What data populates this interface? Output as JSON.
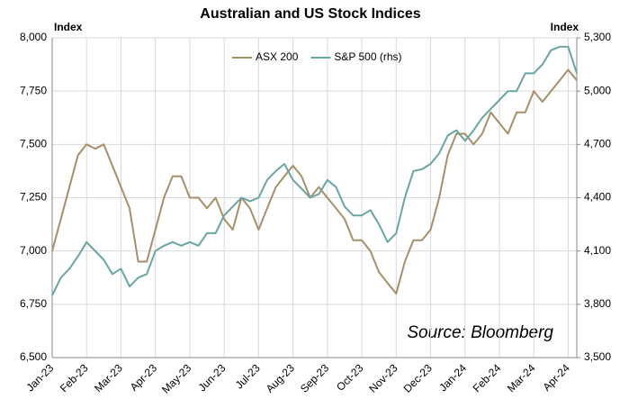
{
  "chart_data": {
    "type": "line",
    "title": "Australian and US Stock Indices",
    "y_label": "Index",
    "y2_label": "Index",
    "annotation": "Source: Bloomberg",
    "categories": [
      "Jan-23",
      null,
      null,
      null,
      "Feb-23",
      null,
      null,
      null,
      "Mar-23",
      null,
      null,
      null,
      "Apr-23",
      null,
      null,
      null,
      "May-23",
      null,
      null,
      null,
      "Jun-23",
      null,
      null,
      null,
      "Jul-23",
      null,
      null,
      null,
      "Aug-23",
      null,
      null,
      null,
      "Sep-23",
      null,
      null,
      null,
      "Oct-23",
      null,
      null,
      null,
      "Nov-23",
      null,
      null,
      null,
      "Dec-23",
      null,
      null,
      null,
      "Jan-24",
      null,
      null,
      null,
      "Feb-24",
      null,
      null,
      null,
      "Mar-24",
      null,
      null,
      null,
      "Apr-24",
      null
    ],
    "series": [
      {
        "name": "ASX 200",
        "color": "#a68f69",
        "values": [
          7000,
          7150,
          7300,
          7450,
          7500,
          7480,
          7500,
          7400,
          7300,
          7200,
          6950,
          6950,
          7100,
          7250,
          7350,
          7350,
          7250,
          7250,
          7200,
          7250,
          7150,
          7100,
          7250,
          7200,
          7100,
          7200,
          7300,
          7350,
          7400,
          7350,
          7250,
          7300,
          7250,
          7200,
          7150,
          7050,
          7050,
          7000,
          6900,
          6850,
          6800,
          6950,
          7050,
          7050,
          7100,
          7250,
          7450,
          7550,
          7550,
          7500,
          7550,
          7650,
          7600,
          7550,
          7650,
          7650,
          7750,
          7700,
          7750,
          7800,
          7850,
          7800
        ]
      },
      {
        "name": "S&P 500 (rhs)",
        "color": "#6aa4a3",
        "axis": "y2",
        "values": [
          3850,
          3950,
          4000,
          4070,
          4150,
          4100,
          4050,
          3970,
          4000,
          3900,
          3950,
          3970,
          4100,
          4130,
          4150,
          4130,
          4150,
          4130,
          4200,
          4200,
          4300,
          4350,
          4400,
          4380,
          4400,
          4500,
          4550,
          4590,
          4500,
          4450,
          4400,
          4420,
          4500,
          4460,
          4350,
          4300,
          4300,
          4330,
          4250,
          4150,
          4200,
          4400,
          4550,
          4560,
          4590,
          4650,
          4750,
          4780,
          4720,
          4780,
          4850,
          4900,
          4950,
          5000,
          5000,
          5100,
          5100,
          5150,
          5230,
          5250,
          5250,
          5100
        ]
      }
    ],
    "ylim": [
      6500,
      8000
    ],
    "yticks": [
      {
        "value": 6500,
        "label": "6,500"
      },
      {
        "value": 6750,
        "label": "6,750"
      },
      {
        "value": 7000,
        "label": "7,000"
      },
      {
        "value": 7250,
        "label": "7,250"
      },
      {
        "value": 7500,
        "label": "7,500"
      },
      {
        "value": 7750,
        "label": "7,750"
      },
      {
        "value": 8000,
        "label": "8,000"
      }
    ],
    "y2lim": [
      3500,
      5300
    ],
    "y2ticks": [
      {
        "value": 3500,
        "label": "3,500"
      },
      {
        "value": 3800,
        "label": "3,800"
      },
      {
        "value": 4100,
        "label": "4,100"
      },
      {
        "value": 4400,
        "label": "4,400"
      },
      {
        "value": 4700,
        "label": "4,700"
      },
      {
        "value": 5000,
        "label": "5,000"
      },
      {
        "value": 5300,
        "label": "5,300"
      }
    ],
    "grid": true,
    "legend": "top"
  }
}
